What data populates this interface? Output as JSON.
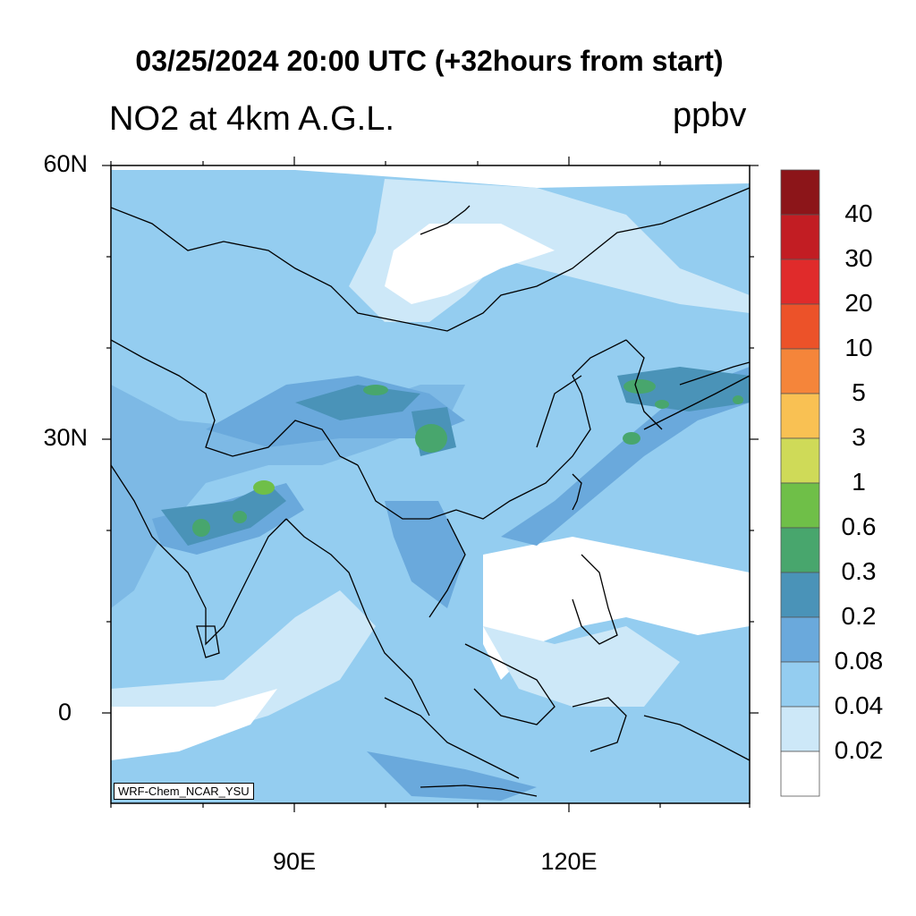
{
  "title": "03/25/2024 20:00 UTC (+32hours from start)",
  "subtitle": "NO2 at 4km A.G.L.",
  "units": "ppbv",
  "credit": "WRF-Chem_NCAR_YSU",
  "lat_labels": [
    "60N",
    "30N",
    "0"
  ],
  "lon_labels": [
    "90E",
    "120E"
  ],
  "colorbar": {
    "labels": [
      "40",
      "30",
      "20",
      "10",
      "5",
      "3",
      "1",
      "0.6",
      "0.3",
      "0.2",
      "0.08",
      "0.04",
      "0.02"
    ],
    "colors": [
      "#8c1519",
      "#c21d23",
      "#e02b2b",
      "#ec5229",
      "#f5853a",
      "#f9c153",
      "#cfda58",
      "#6fbf48",
      "#48a66d",
      "#4a93b8",
      "#6aa9dc",
      "#94cdf0",
      "#cde8f8",
      "#ffffff"
    ]
  },
  "colors": {
    "coast": "#000000",
    "light_blue": "#cde8f8",
    "blue": "#94cdf0",
    "mid_blue": "#6aa9dc",
    "teal": "#4a93b8",
    "green": "#48a66d",
    "bright_green": "#6fbf48"
  }
}
